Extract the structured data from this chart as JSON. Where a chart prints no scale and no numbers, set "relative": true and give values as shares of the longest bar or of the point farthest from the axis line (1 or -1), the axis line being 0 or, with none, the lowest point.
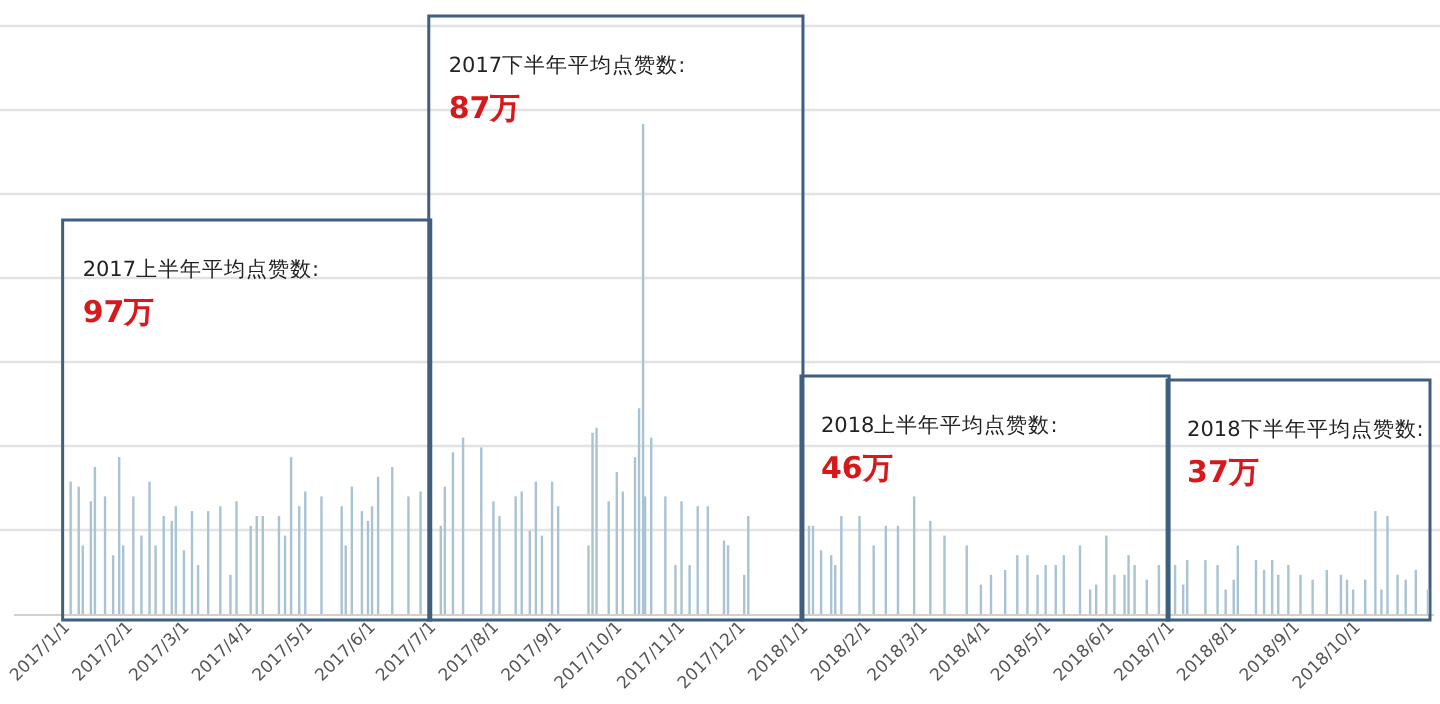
{
  "chart_data": {
    "type": "bar",
    "relative": true,
    "color": "#a9c3d3",
    "grid": "y",
    "x": [
      "2017-01-01",
      "2017-01-05",
      "2017-01-07",
      "2017-01-11",
      "2017-01-13",
      "2017-01-18",
      "2017-01-22",
      "2017-01-25",
      "2017-01-27",
      "2017-02-01",
      "2017-02-05",
      "2017-02-09",
      "2017-02-12",
      "2017-02-16",
      "2017-02-20",
      "2017-02-22",
      "2017-02-26",
      "2017-03-02",
      "2017-03-05",
      "2017-03-10",
      "2017-03-16",
      "2017-03-21",
      "2017-03-24",
      "2017-03-31",
      "2017-04-03",
      "2017-04-06",
      "2017-04-14",
      "2017-04-17",
      "2017-04-20",
      "2017-04-24",
      "2017-04-27",
      "2017-05-05",
      "2017-05-15",
      "2017-05-17",
      "2017-05-20",
      "2017-05-25",
      "2017-05-28",
      "2017-05-30",
      "2017-06-02",
      "2017-06-09",
      "2017-06-17",
      "2017-06-23",
      "2017-07-03",
      "2017-07-05",
      "2017-07-09",
      "2017-07-14",
      "2017-07-23",
      "2017-07-29",
      "2017-08-01",
      "2017-08-09",
      "2017-08-12",
      "2017-08-16",
      "2017-08-19",
      "2017-08-22",
      "2017-08-27",
      "2017-08-30",
      "2017-09-14",
      "2017-09-16",
      "2017-09-18",
      "2017-09-24",
      "2017-09-28",
      "2017-10-01",
      "2017-10-07",
      "2017-10-09",
      "2017-10-11",
      "2017-10-12",
      "2017-10-15",
      "2017-10-22",
      "2017-10-27",
      "2017-10-30",
      "2017-11-03",
      "2017-11-07",
      "2017-11-12",
      "2017-11-20",
      "2017-11-22",
      "2017-11-30",
      "2017-12-02",
      "2018-01-01",
      "2018-01-03",
      "2018-01-07",
      "2018-01-12",
      "2018-01-14",
      "2018-01-17",
      "2018-01-26",
      "2018-02-02",
      "2018-02-08",
      "2018-02-14",
      "2018-02-22",
      "2018-03-02",
      "2018-03-09",
      "2018-03-20",
      "2018-03-27",
      "2018-04-01",
      "2018-04-08",
      "2018-04-14",
      "2018-04-19",
      "2018-04-24",
      "2018-04-28",
      "2018-05-03",
      "2018-05-07",
      "2018-05-15",
      "2018-05-20",
      "2018-05-23",
      "2018-05-28",
      "2018-06-01",
      "2018-06-06",
      "2018-06-08",
      "2018-06-11",
      "2018-06-17",
      "2018-06-23",
      "2018-07-01",
      "2018-07-05",
      "2018-07-07",
      "2018-07-16",
      "2018-07-22",
      "2018-07-26",
      "2018-07-30",
      "2018-08-01",
      "2018-08-10",
      "2018-08-14",
      "2018-08-18",
      "2018-08-21",
      "2018-08-26",
      "2018-09-01",
      "2018-09-07",
      "2018-09-14",
      "2018-09-21",
      "2018-09-24",
      "2018-09-27",
      "2018-10-03",
      "2018-10-08",
      "2018-10-11",
      "2018-10-14",
      "2018-10-19",
      "2018-10-23",
      "2018-10-28",
      "2018-11-03"
    ],
    "values": [
      0.27,
      0.26,
      0.14,
      0.23,
      0.3,
      0.24,
      0.12,
      0.32,
      0.14,
      0.24,
      0.16,
      0.27,
      0.14,
      0.2,
      0.19,
      0.22,
      0.13,
      0.21,
      0.1,
      0.21,
      0.22,
      0.08,
      0.23,
      0.18,
      0.2,
      0.2,
      0.2,
      0.16,
      0.32,
      0.22,
      0.25,
      0.24,
      0.22,
      0.14,
      0.26,
      0.21,
      0.19,
      0.22,
      0.28,
      0.3,
      0.24,
      0.25,
      0.18,
      0.26,
      0.33,
      0.36,
      0.34,
      0.23,
      0.2,
      0.24,
      0.25,
      0.17,
      0.27,
      0.16,
      0.27,
      0.22,
      0.14,
      0.37,
      0.38,
      0.23,
      0.29,
      0.25,
      0.32,
      0.42,
      1.0,
      0.24,
      0.36,
      0.24,
      0.1,
      0.23,
      0.1,
      0.22,
      0.22,
      0.15,
      0.14,
      0.08,
      0.2,
      0.18,
      0.18,
      0.13,
      0.12,
      0.1,
      0.2,
      0.2,
      0.14,
      0.18,
      0.18,
      0.24,
      0.19,
      0.16,
      0.14,
      0.06,
      0.08,
      0.09,
      0.12,
      0.12,
      0.08,
      0.1,
      0.1,
      0.12,
      0.14,
      0.05,
      0.06,
      0.16,
      0.08,
      0.08,
      0.12,
      0.1,
      0.07,
      0.1,
      0.1,
      0.06,
      0.11,
      0.11,
      0.1,
      0.05,
      0.07,
      0.14,
      0.11,
      0.09,
      0.11,
      0.08,
      0.1,
      0.08,
      0.07,
      0.09,
      0.08,
      0.07,
      0.05,
      0.07,
      0.21,
      0.05,
      0.2,
      0.08,
      0.07,
      0.09,
      0.05
    ],
    "xlim": [
      "2016-12-04",
      "2018-11-06"
    ],
    "xticks": [
      {
        "value": "2017-01-01",
        "label": "2017/1/1"
      },
      {
        "value": "2017-02-01",
        "label": "2017/2/1"
      },
      {
        "value": "2017-03-01",
        "label": "2017/3/1"
      },
      {
        "value": "2017-04-01",
        "label": "2017/4/1"
      },
      {
        "value": "2017-05-01",
        "label": "2017/5/1"
      },
      {
        "value": "2017-06-01",
        "label": "2017/6/1"
      },
      {
        "value": "2017-07-01",
        "label": "2017/7/1"
      },
      {
        "value": "2017-08-01",
        "label": "2017/8/1"
      },
      {
        "value": "2017-09-01",
        "label": "2017/9/1"
      },
      {
        "value": "2017-10-01",
        "label": "2017/10/1"
      },
      {
        "value": "2017-11-01",
        "label": "2017/11/1"
      },
      {
        "value": "2017-12-01",
        "label": "2017/12/1"
      },
      {
        "value": "2018-01-01",
        "label": "2018/1/1"
      },
      {
        "value": "2018-02-01",
        "label": "2018/2/1"
      },
      {
        "value": "2018-03-01",
        "label": "2018/3/1"
      },
      {
        "value": "2018-04-01",
        "label": "2018/4/1"
      },
      {
        "value": "2018-05-01",
        "label": "2018/5/1"
      },
      {
        "value": "2018-06-01",
        "label": "2018/6/1"
      },
      {
        "value": "2018-07-01",
        "label": "2018/7/1"
      },
      {
        "value": "2018-08-01",
        "label": "2018/8/1"
      },
      {
        "value": "2018-09-01",
        "label": "2018/9/1"
      },
      {
        "value": "2018-10-01",
        "label": "2018/10/1"
      }
    ],
    "annotations": [
      "2017上半年平均点赞数:",
      "97万",
      "2017下半年平均点赞数:",
      "87万",
      "2018上半年平均点赞数:",
      "46万",
      "2018下半年平均点赞数:",
      "37万"
    ]
  }
}
